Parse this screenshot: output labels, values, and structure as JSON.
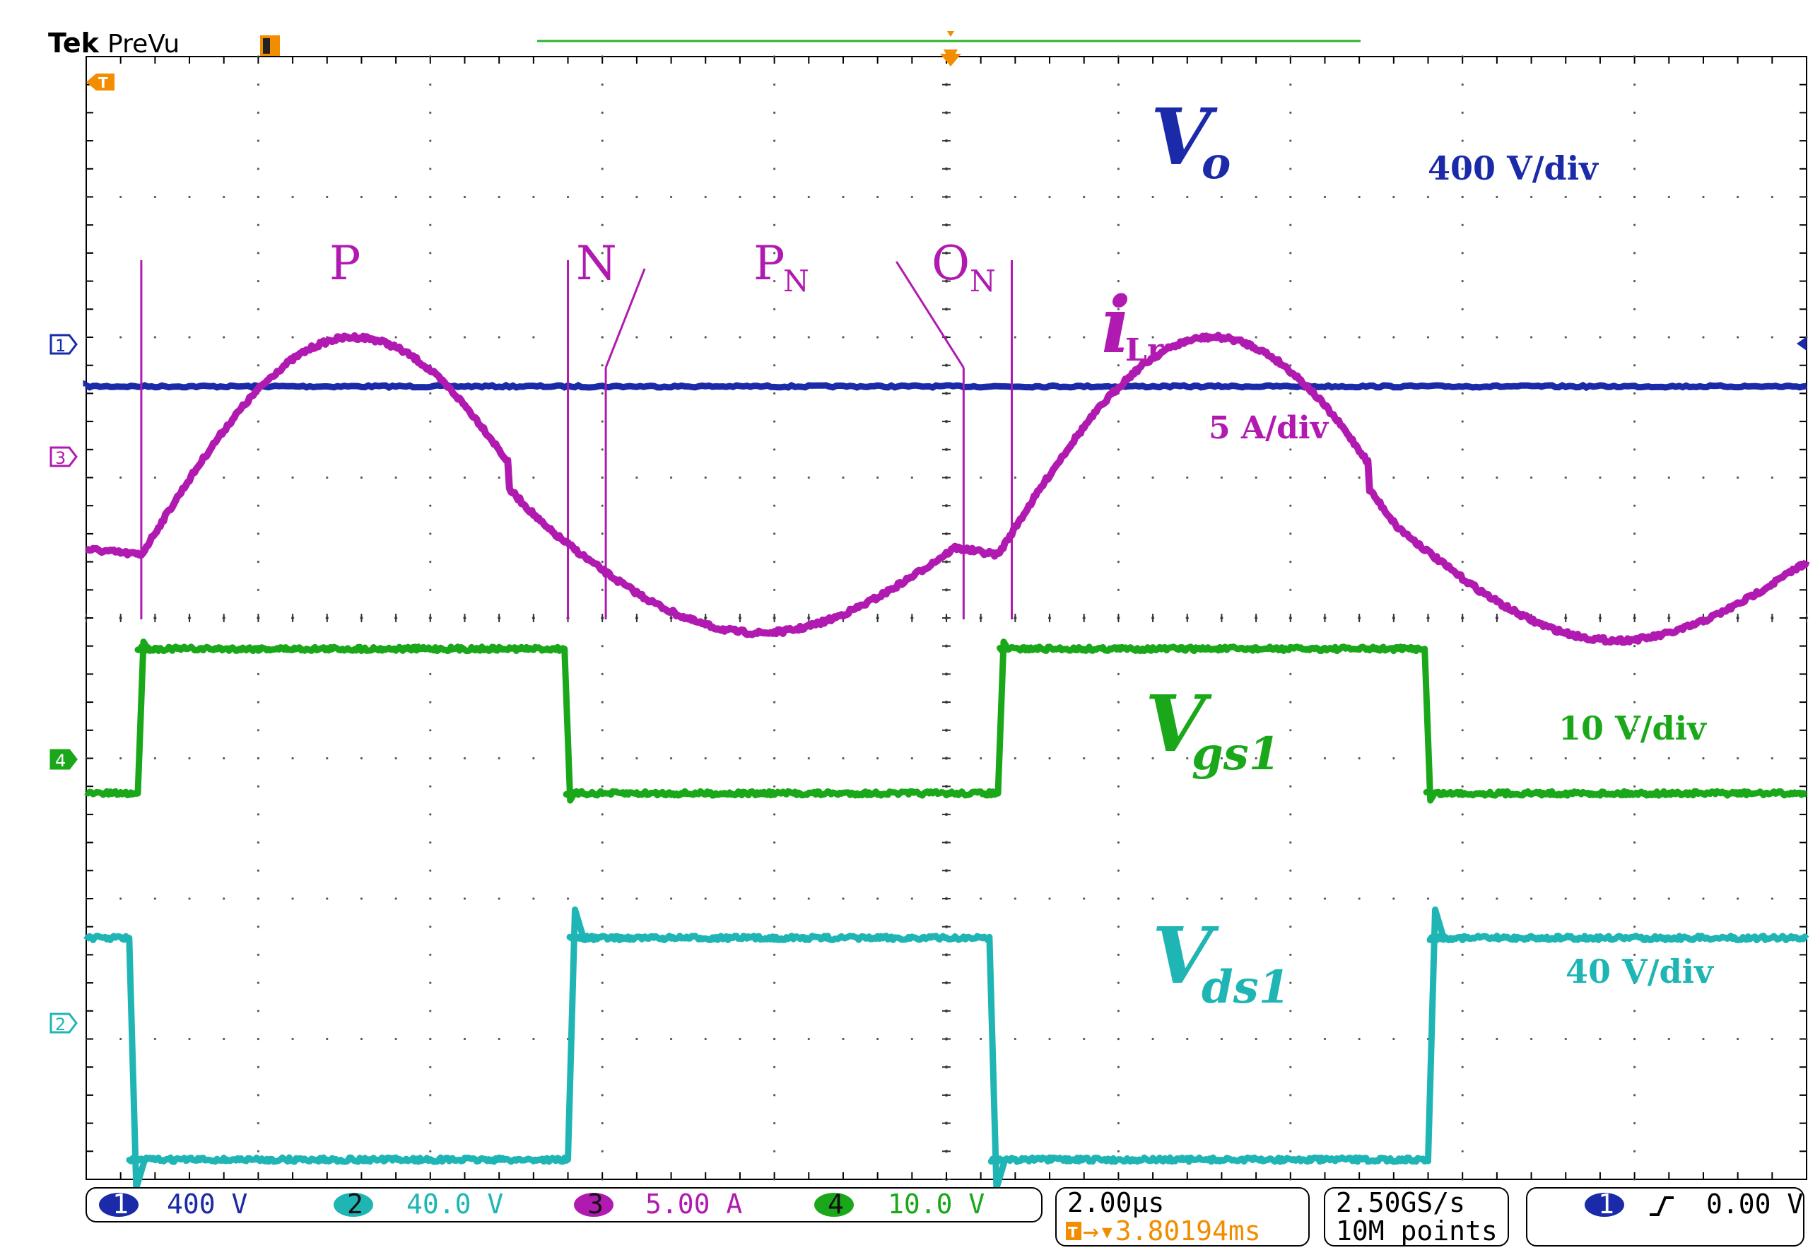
{
  "header": {
    "brand": "Tek",
    "mode": "PreVu"
  },
  "colors": {
    "ch1": "#1a2aa8",
    "ch2": "#1fb5b5",
    "ch3": "#b01ab0",
    "ch4": "#1aa81a",
    "trigger": "#f28c00",
    "grid": "#5a5a5a",
    "record_bar": "#2ab52a"
  },
  "channel_markers": {
    "ch1": "1",
    "ch2": "2",
    "ch3": "3",
    "ch4": "4"
  },
  "labels": {
    "vo": {
      "main": "V",
      "sub": "o",
      "scale": "400 V/div"
    },
    "ilr": {
      "main": "i",
      "sub": "Lr",
      "scale": "5 A/div"
    },
    "vgs": {
      "main": "V",
      "sub": "gs1",
      "scale": "10 V/div"
    },
    "vds": {
      "main": "V",
      "sub": "ds1",
      "scale": "40 V/div"
    }
  },
  "regions": {
    "p": {
      "main": "P",
      "sub": ""
    },
    "n": {
      "main": "N",
      "sub": ""
    },
    "pn": {
      "main": "P",
      "sub": "N"
    },
    "on": {
      "main": "O",
      "sub": "N"
    }
  },
  "status_bar": {
    "channels": [
      {
        "num": "1",
        "value": "400 V"
      },
      {
        "num": "2",
        "value": "40.0 V"
      },
      {
        "num": "3",
        "value": "5.00 A"
      },
      {
        "num": "4",
        "value": "10.0 V"
      }
    ],
    "timebase": "2.00µs",
    "trigger_position": "→▾3.80194ms",
    "sample_rate": "2.50GS/s",
    "record_length": "10M points",
    "trigger_source": "1",
    "trigger_level": "0.00 V"
  },
  "chart_data": {
    "type": "line",
    "grid": {
      "x_divisions": 10,
      "y_divisions": 8
    },
    "time_per_div_us": 2.0,
    "series": [
      {
        "name": "Vo",
        "channel": 1,
        "scale": "400 V/div",
        "kind": "dc",
        "y_div": 2.35
      },
      {
        "name": "iLr",
        "channel": 3,
        "scale": "5 A/div",
        "kind": "resonant",
        "offset_div": 0.32,
        "segments": [
          {
            "t0": 0.0,
            "t1": 0.32,
            "y0": 0.04,
            "y1": 0.0
          },
          {
            "t0": 0.32,
            "t1": 2.45,
            "shape": "sine-half",
            "peak": 1.55
          },
          {
            "t0": 2.45,
            "t1": 2.67,
            "y0": 0.48,
            "y1": 0.2
          },
          {
            "t0": 2.67,
            "t1": 5.05,
            "shape": "sine-trough",
            "trough": -0.68,
            "end": 0.05
          },
          {
            "t0": 5.05,
            "t1": 5.3,
            "y0": 0.05,
            "y1": 0.0
          },
          {
            "t0": 5.3,
            "t1": 7.45,
            "shape": "sine-half",
            "peak": 1.55
          },
          {
            "t0": 7.45,
            "t1": 7.62,
            "y0": 0.48,
            "y1": 0.2
          },
          {
            "t0": 7.62,
            "t1": 10.0,
            "shape": "sine-trough",
            "trough": -0.68,
            "end": -0.05
          }
        ]
      },
      {
        "name": "Vgs1",
        "channel": 4,
        "scale": "10 V/div",
        "kind": "pulse",
        "low_div": 5.25,
        "high_div": 4.22,
        "edges": [
          {
            "t": 0.3,
            "dir": "up"
          },
          {
            "t": 2.78,
            "dir": "down"
          },
          {
            "t": 5.3,
            "dir": "up"
          },
          {
            "t": 7.78,
            "dir": "down"
          }
        ]
      },
      {
        "name": "Vds1",
        "channel": 2,
        "scale": "40 V/div",
        "kind": "pulse",
        "high_div": 6.28,
        "low_div": 7.86,
        "edges": [
          {
            "t": 0.25,
            "dir": "down"
          },
          {
            "t": 2.8,
            "dir": "up"
          },
          {
            "t": 5.25,
            "dir": "down"
          },
          {
            "t": 7.8,
            "dir": "up"
          }
        ]
      }
    ],
    "region_boundaries_div": [
      0.32,
      2.8,
      3.02,
      5.1,
      5.38
    ]
  }
}
